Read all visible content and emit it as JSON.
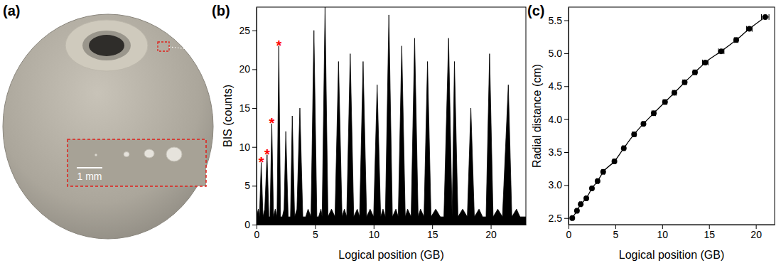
{
  "chart_data": [
    {
      "panel_label": "(a)",
      "type": "image",
      "annotations": [
        "1 mm"
      ]
    },
    {
      "panel_label": "(b)",
      "type": "area",
      "x_label": "Logical position (GB)",
      "y_label": "BIS (counts)",
      "x": [
        0,
        0.15,
        0.25,
        0.4,
        0.55,
        0.7,
        0.9,
        1.05,
        1.15,
        1.3,
        1.45,
        1.6,
        1.75,
        1.9,
        2.05,
        2.2,
        2.35,
        2.5,
        2.7,
        2.9,
        3.05,
        3.25,
        3.45,
        3.7,
        3.95,
        4.2,
        4.4,
        4.65,
        4.9,
        5.15,
        5.3,
        5.5,
        5.6,
        5.85,
        6.1,
        6.4,
        6.7,
        7.0,
        7.3,
        7.5,
        7.7,
        8.0,
        8.3,
        8.6,
        8.8,
        9.1,
        9.4,
        9.7,
        10.0,
        10.3,
        10.6,
        10.8,
        11.0,
        11.3,
        11.6,
        11.9,
        12.1,
        12.4,
        12.7,
        12.9,
        13.2,
        13.5,
        13.8,
        14.0,
        14.3,
        14.6,
        14.9,
        15.3,
        15.7,
        16.0,
        16.4,
        16.7,
        16.9,
        17.2,
        17.6,
        18.0,
        18.3,
        18.6,
        19.0,
        19.3,
        19.6,
        19.9,
        20.2,
        20.6,
        21.0,
        21.5,
        21.8,
        22.2,
        22.5,
        23
      ],
      "values": [
        1,
        2,
        1,
        8,
        1,
        2,
        9,
        1,
        1,
        13,
        1,
        2,
        1,
        23,
        1,
        1,
        2,
        12,
        1,
        1,
        14,
        1,
        2,
        15,
        1,
        1,
        2,
        1,
        25,
        1,
        1,
        2,
        1,
        28,
        1,
        2,
        1,
        21,
        1,
        2,
        1,
        22,
        1,
        2,
        1,
        21,
        1,
        2,
        1,
        18,
        1,
        2,
        1,
        27,
        1,
        2,
        1,
        23,
        1,
        2,
        1,
        24,
        1,
        2,
        1,
        21,
        1,
        2,
        1,
        1,
        24,
        1,
        21,
        1,
        2,
        1,
        15,
        1,
        2,
        1,
        1,
        22,
        1,
        2,
        1,
        18,
        1,
        2,
        1,
        1
      ],
      "color": "#000000",
      "xlim": [
        0,
        23
      ],
      "ylim": [
        0,
        28
      ],
      "xticks": [
        0,
        5,
        10,
        15,
        20
      ],
      "yticks": [
        0,
        5,
        10,
        15,
        20,
        25
      ],
      "annotations": [
        {
          "text": "*",
          "x": 0.4,
          "y": 8,
          "color": "#ff0000"
        },
        {
          "text": "*",
          "x": 0.9,
          "y": 9,
          "color": "#ff0000"
        },
        {
          "text": "*",
          "x": 1.3,
          "y": 13,
          "color": "#ff0000"
        },
        {
          "text": "*",
          "x": 1.9,
          "y": 23,
          "color": "#ff0000"
        }
      ]
    },
    {
      "panel_label": "(c)",
      "type": "line",
      "x_label": "Logical position (GB)",
      "y_label": "Radial distance (cm)",
      "x": [
        0.4,
        0.9,
        1.3,
        1.9,
        2.5,
        3.1,
        3.7,
        4.9,
        5.9,
        7.0,
        8.0,
        9.1,
        10.3,
        11.3,
        12.4,
        13.5,
        14.6,
        16.3,
        17.9,
        19.3,
        21.0
      ],
      "values": [
        2.5,
        2.61,
        2.71,
        2.8,
        2.95,
        3.06,
        3.2,
        3.36,
        3.56,
        3.77,
        3.93,
        4.09,
        4.26,
        4.4,
        4.56,
        4.71,
        4.86,
        5.03,
        5.2,
        5.37,
        5.55
      ],
      "x_errors": [
        0.1,
        0.1,
        0.1,
        0.1,
        0.1,
        0.1,
        0.15,
        0.15,
        0.15,
        0.2,
        0.15,
        0.2,
        0.2,
        0.2,
        0.2,
        0.2,
        0.3,
        0.3,
        0.2,
        0.3,
        0.4
      ],
      "color": "#000000",
      "marker": "circle",
      "line_style": "solid",
      "xlim": [
        0,
        22
      ],
      "ylim": [
        2.4,
        5.7
      ],
      "xticks": [
        0,
        5,
        10,
        15,
        20
      ],
      "yticks": [
        2.5,
        {
          "value": 3,
          "label": "3.0"
        },
        3.5,
        {
          "value": 4,
          "label": "4.0"
        },
        4.5,
        {
          "value": 5,
          "label": "5.0"
        },
        5.5
      ]
    }
  ]
}
